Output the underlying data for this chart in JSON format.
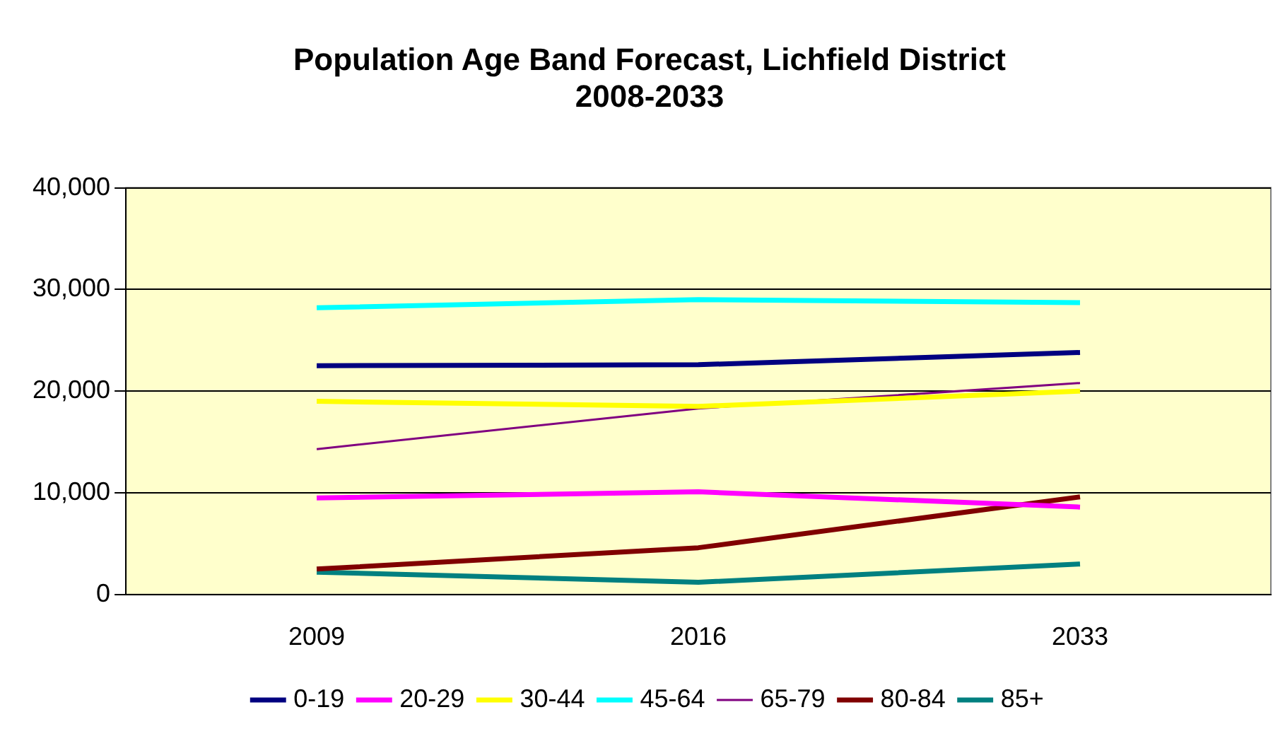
{
  "chart_data": {
    "type": "line",
    "title": [
      "Population Age Band Forecast, Lichfield District",
      "2008-2033"
    ],
    "categories": [
      "2009",
      "2016",
      "2033"
    ],
    "series": [
      {
        "name": "0-19",
        "color": "#000080",
        "values": [
          22500,
          22600,
          23800
        ]
      },
      {
        "name": "20-29",
        "color": "#ff00ff",
        "values": [
          9500,
          10100,
          8600
        ]
      },
      {
        "name": "30-44",
        "color": "#ffff00",
        "values": [
          19000,
          18500,
          20000
        ]
      },
      {
        "name": "45-64",
        "color": "#00ffff",
        "values": [
          28200,
          29000,
          28700
        ]
      },
      {
        "name": "65-79",
        "color": "#800080",
        "values": [
          14300,
          18300,
          20800
        ]
      },
      {
        "name": "80-84",
        "color": "#800000",
        "values": [
          2500,
          4600,
          9600
        ]
      },
      {
        "name": "85+",
        "color": "#008080",
        "values": [
          2200,
          1200,
          3000
        ]
      }
    ],
    "ylim": [
      0,
      40000
    ],
    "yticks": [
      0,
      {
        "value": 10000,
        "label": "10,000"
      },
      {
        "value": 20000,
        "label": "20,000"
      },
      {
        "value": 30000,
        "label": "30,000"
      },
      {
        "value": 40000,
        "label": "40,000"
      }
    ],
    "grid": "y",
    "legend": "bottom",
    "marker": "none"
  }
}
